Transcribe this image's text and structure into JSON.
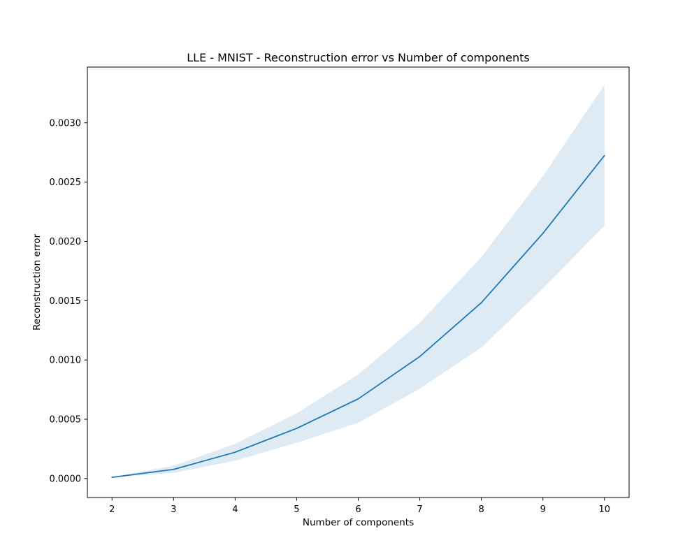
{
  "chart_data": {
    "type": "line",
    "title": "LLE - MNIST - Reconstruction error vs Number of components",
    "xlabel": "Number of components",
    "ylabel": "Reconstruction error",
    "x": [
      2,
      3,
      4,
      5,
      6,
      7,
      8,
      9,
      10
    ],
    "x_tick_labels": [
      "2",
      "3",
      "4",
      "5",
      "6",
      "7",
      "8",
      "9",
      "10"
    ],
    "y_ticks": [
      0.0,
      0.0005,
      0.001,
      0.0015,
      0.002,
      0.0025,
      0.003
    ],
    "y_tick_labels": [
      "0.0000",
      "0.0005",
      "0.0010",
      "0.0015",
      "0.0020",
      "0.0025",
      "0.0030"
    ],
    "xlim": [
      1.6,
      10.4
    ],
    "ylim": [
      -0.00016,
      0.00347
    ],
    "grid": false,
    "series": [
      {
        "values": [
          1e-05,
          7.7e-05,
          0.000222,
          0.000423,
          0.000672,
          0.001029,
          0.001483,
          0.002068,
          0.002724
        ],
        "band_upper": [
          1.2e-05,
          0.000108,
          0.000292,
          0.00055,
          0.000877,
          0.001314,
          0.001868,
          0.00255,
          0.00332
        ],
        "band_lower": [
          8e-06,
          4.8e-05,
          0.00015,
          0.000302,
          0.00047,
          0.000758,
          0.001105,
          0.001603,
          0.002132
        ],
        "color": "#1f77b4",
        "band_color": "#1f77b4"
      }
    ]
  }
}
